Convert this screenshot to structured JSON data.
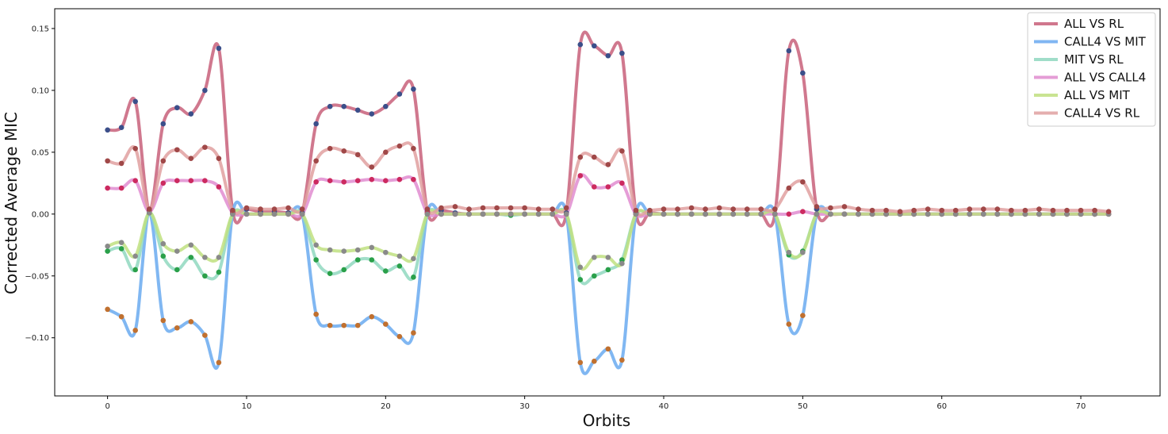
{
  "chart_data": {
    "type": "line",
    "xlabel": "Orbits",
    "ylabel": "Corrected Average MIC",
    "xlim": [
      -3.8,
      75.7
    ],
    "ylim": [
      -0.147,
      0.166
    ],
    "xticks": [
      0,
      10,
      20,
      30,
      40,
      50,
      60,
      70
    ],
    "yticks": [
      -0.1,
      -0.05,
      0.0,
      0.05,
      0.1,
      0.15
    ],
    "ytick_labels": [
      "−0.10",
      "−0.05",
      "0.00",
      "0.05",
      "0.10",
      "0.15"
    ],
    "grid": false,
    "legend_position": "top-right",
    "series": [
      {
        "name": "ALL VS RL",
        "color": "#c8607a",
        "marker_color": "#3b4f8a",
        "values": [
          0.068,
          0.07,
          0.091,
          0.003,
          0.073,
          0.086,
          0.081,
          0.1,
          0.134,
          0.002,
          0.004,
          0.002,
          0.002,
          0.001,
          0.001,
          0.073,
          0.087,
          0.087,
          0.084,
          0.081,
          0.087,
          0.097,
          0.101,
          0.002,
          0.003,
          0.001,
          0.0,
          0.0,
          0.0,
          0.0,
          0.0,
          0.0,
          0.0,
          0.001,
          0.137,
          0.136,
          0.128,
          0.13,
          0.001,
          0.001,
          0.0,
          0.0,
          0.0,
          0.0,
          0.0,
          0.0,
          0.0,
          0.0,
          0.0,
          0.132,
          0.114,
          0.004,
          0.0,
          0.0,
          0.0,
          0.0,
          0.0,
          0.0,
          0.0,
          0.0,
          0.0,
          0.0,
          0.0,
          0.0,
          0.0,
          0.0,
          0.0,
          0.0,
          0.0,
          0.0,
          0.0,
          0.0,
          0.0
        ]
      },
      {
        "name": "CALL4 VS MIT",
        "color": "#6aaaf0",
        "marker_color": "#c0702f",
        "values": [
          -0.077,
          -0.083,
          -0.094,
          0.001,
          -0.086,
          -0.092,
          -0.087,
          -0.098,
          -0.12,
          0.001,
          0.0,
          0.0,
          0.0,
          0.0,
          0.0,
          -0.081,
          -0.09,
          -0.09,
          -0.09,
          -0.083,
          -0.089,
          -0.099,
          -0.096,
          0.001,
          0.0,
          0.0,
          0.0,
          0.0,
          0.0,
          0.0,
          0.0,
          0.0,
          0.0,
          0.0,
          -0.12,
          -0.119,
          -0.109,
          -0.118,
          0.0,
          0.0,
          0.0,
          0.0,
          0.0,
          0.0,
          0.0,
          0.0,
          0.0,
          0.0,
          0.0,
          -0.089,
          -0.082,
          0.0,
          0.0,
          0.0,
          0.0,
          0.0,
          0.0,
          0.0,
          0.0,
          0.0,
          0.0,
          0.0,
          0.0,
          0.0,
          0.0,
          0.0,
          0.0,
          0.0,
          0.0,
          0.0,
          0.0,
          0.0,
          0.0
        ]
      },
      {
        "name": "MIT VS RL",
        "color": "#90d8c0",
        "marker_color": "#2aa04a",
        "values": [
          -0.03,
          -0.028,
          -0.045,
          0.001,
          -0.034,
          -0.045,
          -0.035,
          -0.05,
          -0.047,
          0.0,
          0.0,
          0.0,
          0.0,
          0.0,
          0.0,
          -0.037,
          -0.048,
          -0.045,
          -0.037,
          -0.037,
          -0.046,
          -0.042,
          -0.051,
          0.0,
          0.0,
          0.0,
          0.0,
          0.0,
          0.0,
          -0.001,
          0.0,
          0.0,
          0.0,
          0.0,
          -0.053,
          -0.05,
          -0.045,
          -0.037,
          0.0,
          0.0,
          0.0,
          0.0,
          0.0,
          0.0,
          0.0,
          0.0,
          0.0,
          0.0,
          0.0,
          -0.033,
          -0.03,
          0.0,
          0.0,
          0.0,
          0.0,
          0.0,
          0.0,
          0.0,
          0.0,
          0.0,
          0.0,
          0.0,
          0.0,
          0.0,
          0.0,
          0.0,
          0.0,
          0.0,
          0.0,
          0.0,
          0.0,
          0.0,
          0.0
        ]
      },
      {
        "name": "ALL VS CALL4",
        "color": "#e08cd0",
        "marker_color": "#cc2a60",
        "values": [
          0.021,
          0.021,
          0.027,
          0.002,
          0.025,
          0.027,
          0.027,
          0.027,
          0.022,
          0.001,
          0.0,
          0.0,
          0.0,
          0.0,
          0.0,
          0.026,
          0.027,
          0.026,
          0.027,
          0.028,
          0.027,
          0.028,
          0.028,
          0.001,
          0.0,
          0.0,
          0.0,
          0.0,
          0.0,
          0.0,
          0.0,
          0.0,
          0.0,
          0.0,
          0.031,
          0.022,
          0.022,
          0.025,
          0.0,
          0.0,
          0.0,
          0.0,
          0.0,
          0.0,
          0.0,
          0.0,
          0.0,
          0.0,
          0.0,
          0.0,
          0.002,
          0.0,
          0.0,
          0.0,
          0.0,
          0.0,
          0.0,
          0.0,
          0.0,
          0.0,
          0.0,
          0.0,
          0.0,
          0.0,
          0.0,
          0.0,
          0.0,
          0.0,
          0.0,
          0.0,
          0.0,
          0.0,
          0.0
        ]
      },
      {
        "name": "ALL VS MIT",
        "color": "#c0e080",
        "marker_color": "#8a8a8a",
        "values": [
          -0.026,
          -0.023,
          -0.034,
          0.001,
          -0.024,
          -0.03,
          -0.025,
          -0.035,
          -0.035,
          0.0,
          0.0,
          0.0,
          0.0,
          0.0,
          0.0,
          -0.025,
          -0.029,
          -0.03,
          -0.029,
          -0.027,
          -0.031,
          -0.034,
          -0.036,
          0.0,
          0.0,
          0.0,
          0.0,
          0.0,
          0.0,
          0.0,
          0.0,
          0.0,
          0.0,
          0.0,
          -0.043,
          -0.035,
          -0.035,
          -0.04,
          0.0,
          0.0,
          0.0,
          0.0,
          0.0,
          0.0,
          0.0,
          0.0,
          0.0,
          0.0,
          0.0,
          -0.031,
          -0.031,
          0.0,
          0.0,
          0.0,
          0.0,
          0.0,
          0.0,
          0.0,
          0.0,
          0.0,
          0.0,
          0.0,
          0.0,
          0.0,
          0.0,
          0.0,
          0.0,
          0.0,
          0.0,
          0.0,
          0.0,
          0.0,
          0.0
        ]
      },
      {
        "name": "CALL4 VS RL",
        "color": "#e0a0a0",
        "marker_color": "#a04848",
        "values": [
          0.043,
          0.041,
          0.053,
          0.004,
          0.043,
          0.052,
          0.045,
          0.054,
          0.045,
          0.003,
          0.005,
          0.004,
          0.004,
          0.005,
          0.004,
          0.043,
          0.053,
          0.051,
          0.048,
          0.038,
          0.05,
          0.055,
          0.053,
          0.004,
          0.005,
          0.006,
          0.004,
          0.005,
          0.005,
          0.005,
          0.005,
          0.004,
          0.004,
          0.005,
          0.046,
          0.046,
          0.04,
          0.051,
          0.003,
          0.003,
          0.004,
          0.004,
          0.005,
          0.004,
          0.005,
          0.004,
          0.004,
          0.004,
          0.004,
          0.021,
          0.026,
          0.006,
          0.005,
          0.006,
          0.004,
          0.003,
          0.003,
          0.002,
          0.003,
          0.004,
          0.003,
          0.003,
          0.004,
          0.004,
          0.004,
          0.003,
          0.003,
          0.004,
          0.003,
          0.003,
          0.003,
          0.003,
          0.002
        ]
      }
    ]
  }
}
